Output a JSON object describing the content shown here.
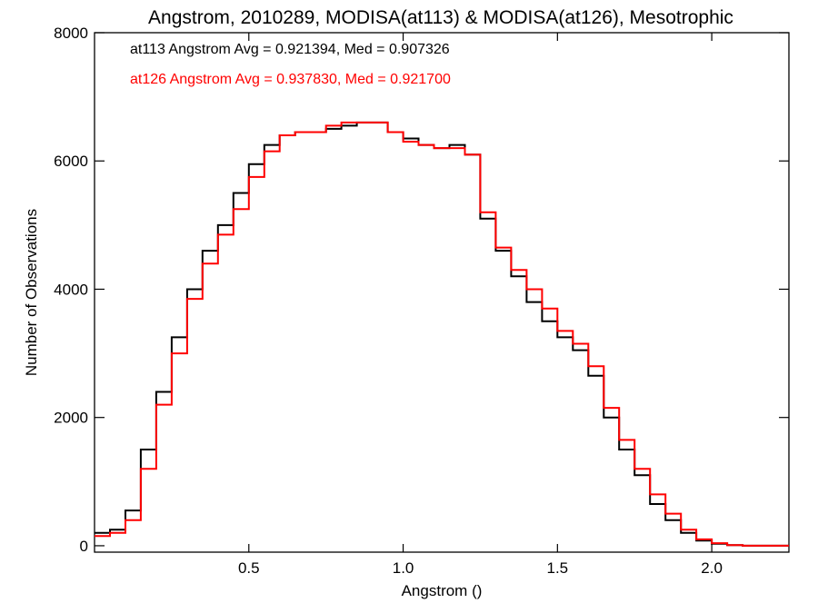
{
  "chart_data": {
    "type": "line",
    "title": "Angstrom, 2010289, MODISA(at113) & MODISA(at126), Mesotrophic",
    "xlabel": "Angstrom ()",
    "ylabel": "Number of Observations",
    "xlim": [
      0.0,
      2.25
    ],
    "ylim": [
      -100,
      8000
    ],
    "grid": false,
    "x_ticks": [
      0.5,
      1.0,
      1.5,
      2.0
    ],
    "x_tick_labels": [
      "0.5",
      "1.0",
      "1.5",
      "2.0"
    ],
    "y_ticks": [
      0,
      2000,
      4000,
      6000,
      8000
    ],
    "y_tick_labels": [
      "0",
      "2000",
      "4000",
      "6000",
      "8000"
    ],
    "annotations": [
      {
        "text": "at113 Angstrom Avg = 0.921394, Med = 0.907326",
        "color": "#000000"
      },
      {
        "text": "at126 Angstrom Avg = 0.937830, Med = 0.921700",
        "color": "#ff0000"
      }
    ],
    "series": [
      {
        "color": "#000000",
        "x": [
          0.0,
          0.05,
          0.1,
          0.15,
          0.2,
          0.25,
          0.3,
          0.35,
          0.4,
          0.45,
          0.5,
          0.55,
          0.6,
          0.65,
          0.7,
          0.75,
          0.8,
          0.85,
          0.9,
          0.95,
          1.0,
          1.05,
          1.1,
          1.15,
          1.2,
          1.25,
          1.3,
          1.35,
          1.4,
          1.45,
          1.5,
          1.55,
          1.6,
          1.65,
          1.7,
          1.75,
          1.8,
          1.85,
          1.9,
          1.95,
          2.0,
          2.05,
          2.1,
          2.15,
          2.2,
          2.25
        ],
        "y": [
          200,
          250,
          550,
          1500,
          2400,
          3250,
          4000,
          4600,
          5000,
          5500,
          5950,
          6250,
          6400,
          6450,
          6450,
          6500,
          6550,
          6600,
          6600,
          6450,
          6350,
          6250,
          6200,
          6250,
          6100,
          5100,
          4600,
          4200,
          3800,
          3500,
          3250,
          3050,
          2650,
          2000,
          1500,
          1100,
          650,
          400,
          200,
          80,
          30,
          10,
          0,
          0,
          0,
          0
        ]
      },
      {
        "color": "#ff0000",
        "x": [
          0.0,
          0.05,
          0.1,
          0.15,
          0.2,
          0.25,
          0.3,
          0.35,
          0.4,
          0.45,
          0.5,
          0.55,
          0.6,
          0.65,
          0.7,
          0.75,
          0.8,
          0.85,
          0.9,
          0.95,
          1.0,
          1.05,
          1.1,
          1.15,
          1.2,
          1.25,
          1.3,
          1.35,
          1.4,
          1.45,
          1.5,
          1.55,
          1.6,
          1.65,
          1.7,
          1.75,
          1.8,
          1.85,
          1.9,
          1.95,
          2.0,
          2.05,
          2.1,
          2.15,
          2.2,
          2.25
        ],
        "y": [
          150,
          200,
          400,
          1200,
          2200,
          3000,
          3850,
          4400,
          4850,
          5250,
          5750,
          6150,
          6400,
          6450,
          6450,
          6550,
          6600,
          6600,
          6600,
          6450,
          6300,
          6250,
          6200,
          6200,
          6100,
          5200,
          4650,
          4300,
          4000,
          3700,
          3350,
          3150,
          2800,
          2150,
          1650,
          1200,
          800,
          500,
          250,
          100,
          40,
          10,
          0,
          0,
          0,
          0
        ]
      }
    ]
  }
}
